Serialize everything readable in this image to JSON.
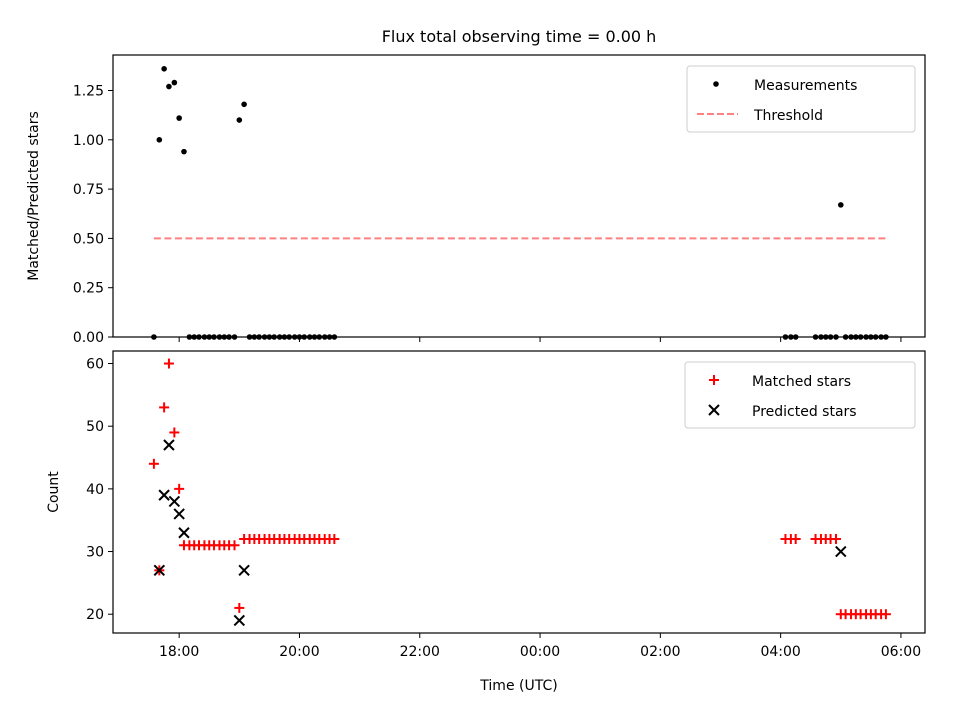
{
  "chart_data": [
    {
      "type": "scatter",
      "title": "Flux total observing time = 0.00 h",
      "xlabel": "",
      "ylabel": "Matched/Predicted stars",
      "x_unit": "hours since 2000-01-01T00:00 UTC",
      "xlim": [
        16.9,
        30.4
      ],
      "ylim": [
        0,
        1.43
      ],
      "yticks": [
        0.0,
        0.25,
        0.5,
        0.75,
        1.0,
        1.25
      ],
      "ytick_labels": [
        "0.00",
        "0.25",
        "0.50",
        "0.75",
        "1.00",
        "1.25"
      ],
      "legend_position": "top-right",
      "series": [
        {
          "name": "Measurements",
          "kind": "points",
          "color": "#000000",
          "x": [
            17.58,
            17.67,
            17.75,
            17.83,
            17.92,
            18.0,
            18.08,
            18.17,
            18.25,
            18.33,
            18.42,
            18.5,
            18.58,
            18.67,
            18.75,
            18.83,
            18.92,
            19.0,
            19.08,
            19.17,
            19.25,
            19.33,
            19.42,
            19.5,
            19.58,
            19.67,
            19.75,
            19.83,
            19.92,
            20.0,
            20.08,
            20.17,
            20.25,
            20.33,
            20.42,
            20.5,
            20.58,
            28.08,
            28.17,
            28.25,
            28.58,
            28.67,
            28.75,
            28.83,
            28.92,
            29.0,
            29.08,
            29.17,
            29.25,
            29.33,
            29.42,
            29.5,
            29.58,
            29.67,
            29.75
          ],
          "y": [
            0.0,
            1.0,
            1.36,
            1.27,
            1.29,
            1.11,
            0.94,
            0.0,
            0.0,
            0.0,
            0.0,
            0.0,
            0.0,
            0.0,
            0.0,
            0.0,
            0.0,
            1.1,
            1.18,
            0.0,
            0.0,
            0.0,
            0.0,
            0.0,
            0.0,
            0.0,
            0.0,
            0.0,
            0.0,
            0.0,
            0.0,
            0.0,
            0.0,
            0.0,
            0.0,
            0.0,
            0.0,
            0.0,
            0.0,
            0.0,
            0.0,
            0.0,
            0.0,
            0.0,
            0.0,
            0.67,
            0.0,
            0.0,
            0.0,
            0.0,
            0.0,
            0.0,
            0.0,
            0.0,
            0.0
          ]
        },
        {
          "name": "Threshold",
          "kind": "dashed-line",
          "color": "#ff8080",
          "x": [
            17.58,
            29.75
          ],
          "y": [
            0.5,
            0.5
          ]
        }
      ]
    },
    {
      "type": "scatter",
      "title": "",
      "xlabel": "Time (UTC)",
      "ylabel": "Count",
      "x_unit": "hours since 2000-01-01T00:00 UTC",
      "xlim": [
        16.9,
        30.4
      ],
      "ylim": [
        17.0,
        62.0
      ],
      "yticks": [
        20,
        30,
        40,
        50,
        60
      ],
      "ytick_labels": [
        "20",
        "30",
        "40",
        "50",
        "60"
      ],
      "xticks": [
        18,
        20,
        22,
        24,
        26,
        28,
        30
      ],
      "xtick_labels": [
        "18:00",
        "20:00",
        "22:00",
        "00:00",
        "02:00",
        "04:00",
        "06:00"
      ],
      "legend_position": "top-right",
      "series": [
        {
          "name": "Matched stars",
          "marker": "+",
          "color": "#ff0000",
          "x": [
            17.58,
            17.67,
            17.75,
            17.83,
            17.92,
            18.0,
            18.08,
            18.17,
            18.25,
            18.33,
            18.42,
            18.5,
            18.58,
            18.67,
            18.75,
            18.83,
            18.92,
            19.0,
            19.08,
            19.17,
            19.25,
            19.33,
            19.42,
            19.5,
            19.58,
            19.67,
            19.75,
            19.83,
            19.92,
            20.0,
            20.08,
            20.17,
            20.25,
            20.33,
            20.42,
            20.5,
            20.58,
            28.08,
            28.17,
            28.25,
            28.58,
            28.67,
            28.75,
            28.83,
            28.92,
            29.0,
            29.08,
            29.17,
            29.25,
            29.33,
            29.42,
            29.5,
            29.58,
            29.67,
            29.75
          ],
          "y": [
            44,
            27,
            53,
            60,
            49,
            40,
            31,
            31,
            31,
            31,
            31,
            31,
            31,
            31,
            31,
            31,
            31,
            21,
            32,
            32,
            32,
            32,
            32,
            32,
            32,
            32,
            32,
            32,
            32,
            32,
            32,
            32,
            32,
            32,
            32,
            32,
            32,
            32,
            32,
            32,
            32,
            32,
            32,
            32,
            32,
            20,
            20,
            20,
            20,
            20,
            20,
            20,
            20,
            20,
            20
          ]
        },
        {
          "name": "Predicted stars",
          "marker": "x",
          "color": "#000000",
          "x": [
            17.67,
            17.75,
            17.83,
            17.92,
            18.0,
            18.08,
            19.0,
            19.08,
            29.0
          ],
          "y": [
            27,
            39,
            47,
            38,
            36,
            33,
            19,
            27,
            30
          ]
        }
      ]
    }
  ]
}
